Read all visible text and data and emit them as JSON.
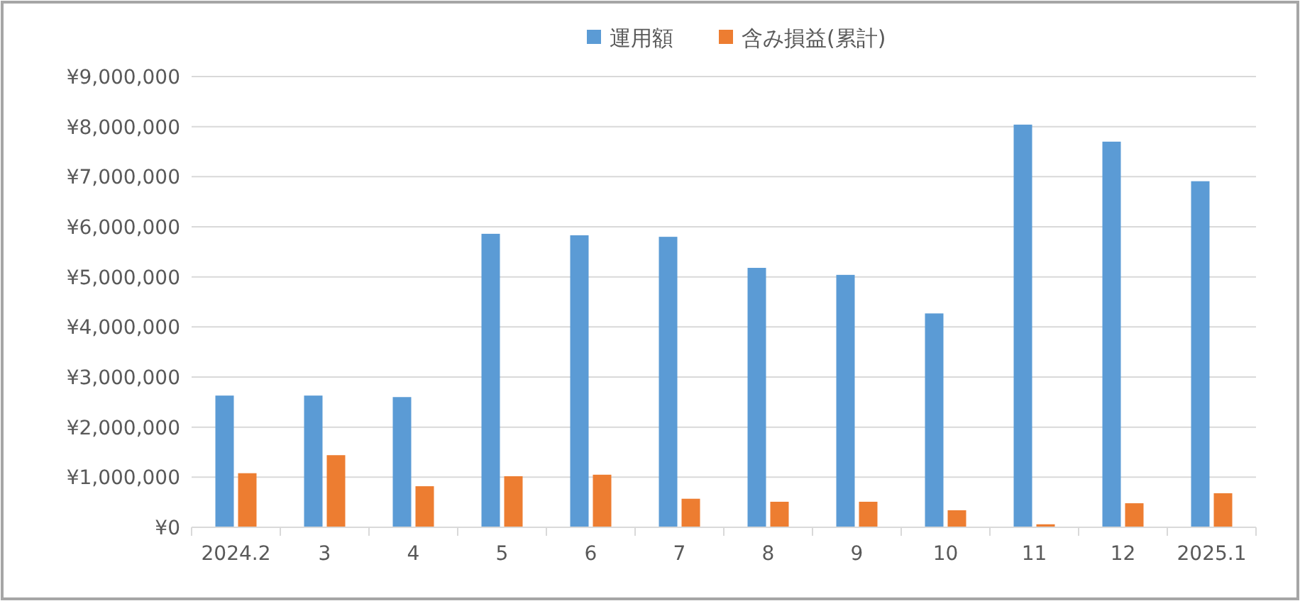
{
  "chart_data": {
    "type": "bar",
    "categories": [
      "2024.2",
      "3",
      "4",
      "5",
      "6",
      "7",
      "8",
      "9",
      "10",
      "11",
      "12",
      "2025.1"
    ],
    "series": [
      {
        "name": "運用額",
        "color": "#5b9bd5",
        "values": [
          2630000,
          2630000,
          2600000,
          5860000,
          5830000,
          5800000,
          5180000,
          5040000,
          4270000,
          8040000,
          7700000,
          6910000
        ]
      },
      {
        "name": "含み損益(累計)",
        "color": "#ed7d31",
        "values": [
          1080000,
          1440000,
          820000,
          1020000,
          1050000,
          570000,
          510000,
          510000,
          340000,
          60000,
          480000,
          680000
        ]
      }
    ],
    "ylim": [
      0,
      9000000
    ],
    "yticks": [
      {
        "value": 0,
        "label": "¥0"
      },
      {
        "value": 1000000,
        "label": "¥1,000,000"
      },
      {
        "value": 2000000,
        "label": "¥2,000,000"
      },
      {
        "value": 3000000,
        "label": "¥3,000,000"
      },
      {
        "value": 4000000,
        "label": "¥4,000,000"
      },
      {
        "value": 5000000,
        "label": "¥5,000,000"
      },
      {
        "value": 6000000,
        "label": "¥6,000,000"
      },
      {
        "value": 7000000,
        "label": "¥7,000,000"
      },
      {
        "value": 8000000,
        "label": "¥8,000,000"
      },
      {
        "value": 9000000,
        "label": "¥9,000,000"
      }
    ],
    "grid": "y",
    "legend": "top"
  }
}
